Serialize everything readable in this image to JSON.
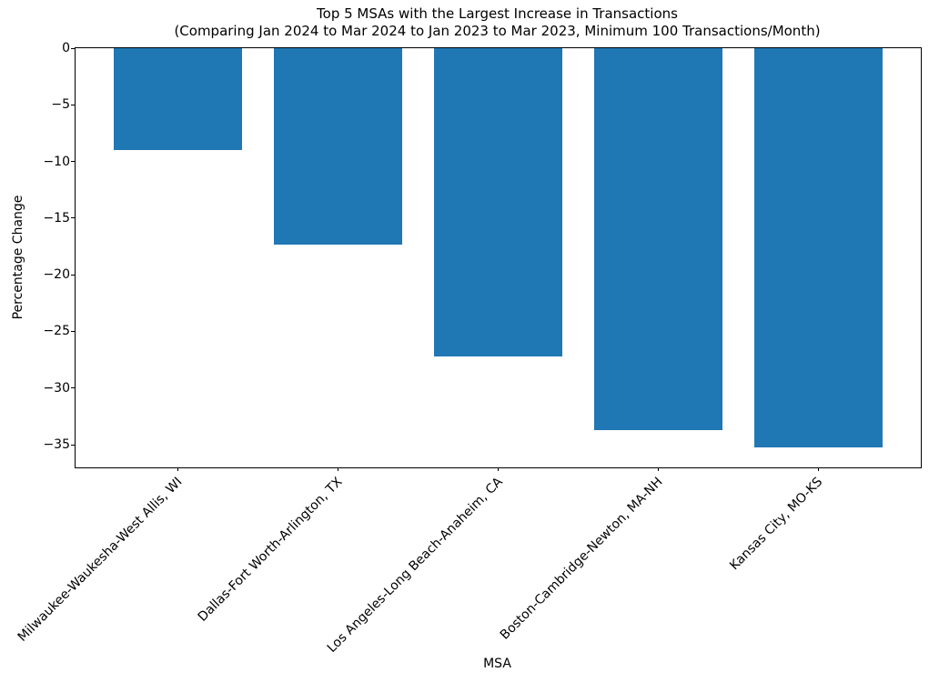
{
  "chart_data": {
    "type": "bar",
    "title": "Top 5 MSAs with the Largest Increase in Transactions",
    "subtitle": "(Comparing Jan 2024 to Mar 2024 to Jan 2023 to Mar 2023, Minimum 100 Transactions/Month)",
    "xlabel": "MSA",
    "ylabel": "Percentage Change",
    "categories": [
      "Milwaukee-Waukesha-West Allis, WI",
      "Dallas-Fort Worth-Arlington, TX",
      "Los Angeles-Long Beach-Anaheim, CA",
      "Boston-Cambridge-Newton, MA-NH",
      "Kansas City, MO-KS"
    ],
    "values": [
      -9.0,
      -17.3,
      -27.2,
      -33.7,
      -35.2
    ],
    "ylim": [
      -37,
      0
    ],
    "yticks": [
      0,
      -5,
      -10,
      -15,
      -20,
      -25,
      -30,
      -35
    ],
    "bar_color": "#1f77b4",
    "bar_width_fraction": 0.8,
    "x_margin": 0.64,
    "x_tick_label_rotation_deg": 45,
    "grid": false,
    "legend": null
  }
}
